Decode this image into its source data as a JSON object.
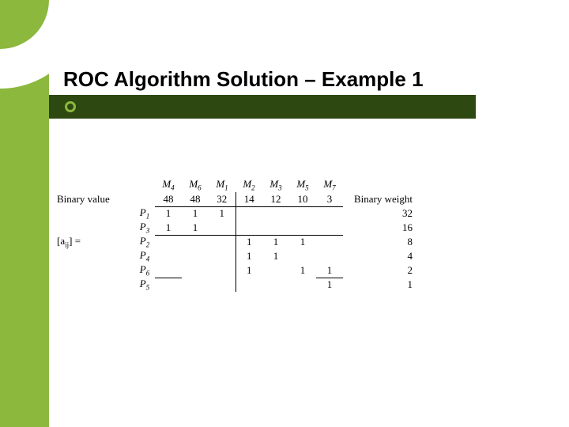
{
  "slide": {
    "title": "ROC Algorithm Solution – Example 1",
    "sidebar_color": "#8cb83e",
    "darkbar_color": "#2d4811"
  },
  "labels": {
    "binary_value": "Binary value",
    "matrix_eq": "[a",
    "matrix_sub": "ij",
    "matrix_eq2": "] =",
    "binary_weight": "Binary weight"
  },
  "columns": {
    "m4": "M",
    "m4s": "4",
    "m6": "M",
    "m6s": "6",
    "m1": "M",
    "m1s": "1",
    "m2": "M",
    "m2s": "2",
    "m3": "M",
    "m3s": "3",
    "m5": "M",
    "m5s": "5",
    "m7": "M",
    "m7s": "7"
  },
  "binary_values": {
    "m4": "48",
    "m6": "48",
    "m1": "32",
    "m2": "14",
    "m3": "12",
    "m5": "10",
    "m7": "3"
  },
  "rows": {
    "p1": "P",
    "p1s": "1",
    "p3": "P",
    "p3s": "3",
    "p2": "P",
    "p2s": "2",
    "p4": "P",
    "p4s": "4",
    "p6": "P",
    "p6s": "6",
    "p5": "P",
    "p5s": "5"
  },
  "binary_weights": {
    "p1": "32",
    "p3": "16",
    "p2": "8",
    "p4": "4",
    "p6": "2",
    "p5": "1"
  },
  "matrix": {
    "p1_m4": "1",
    "p1_m6": "1",
    "p1_m1": "1",
    "p3_m4": "1",
    "p3_m6": "1",
    "p2_m2": "1",
    "p2_m3": "1",
    "p2_m5": "1",
    "p4_m2": "1",
    "p4_m3": "1",
    "p6_m2": "1",
    "p6_m5": "1",
    "p6_m7": "1",
    "p5_m7": "1"
  }
}
